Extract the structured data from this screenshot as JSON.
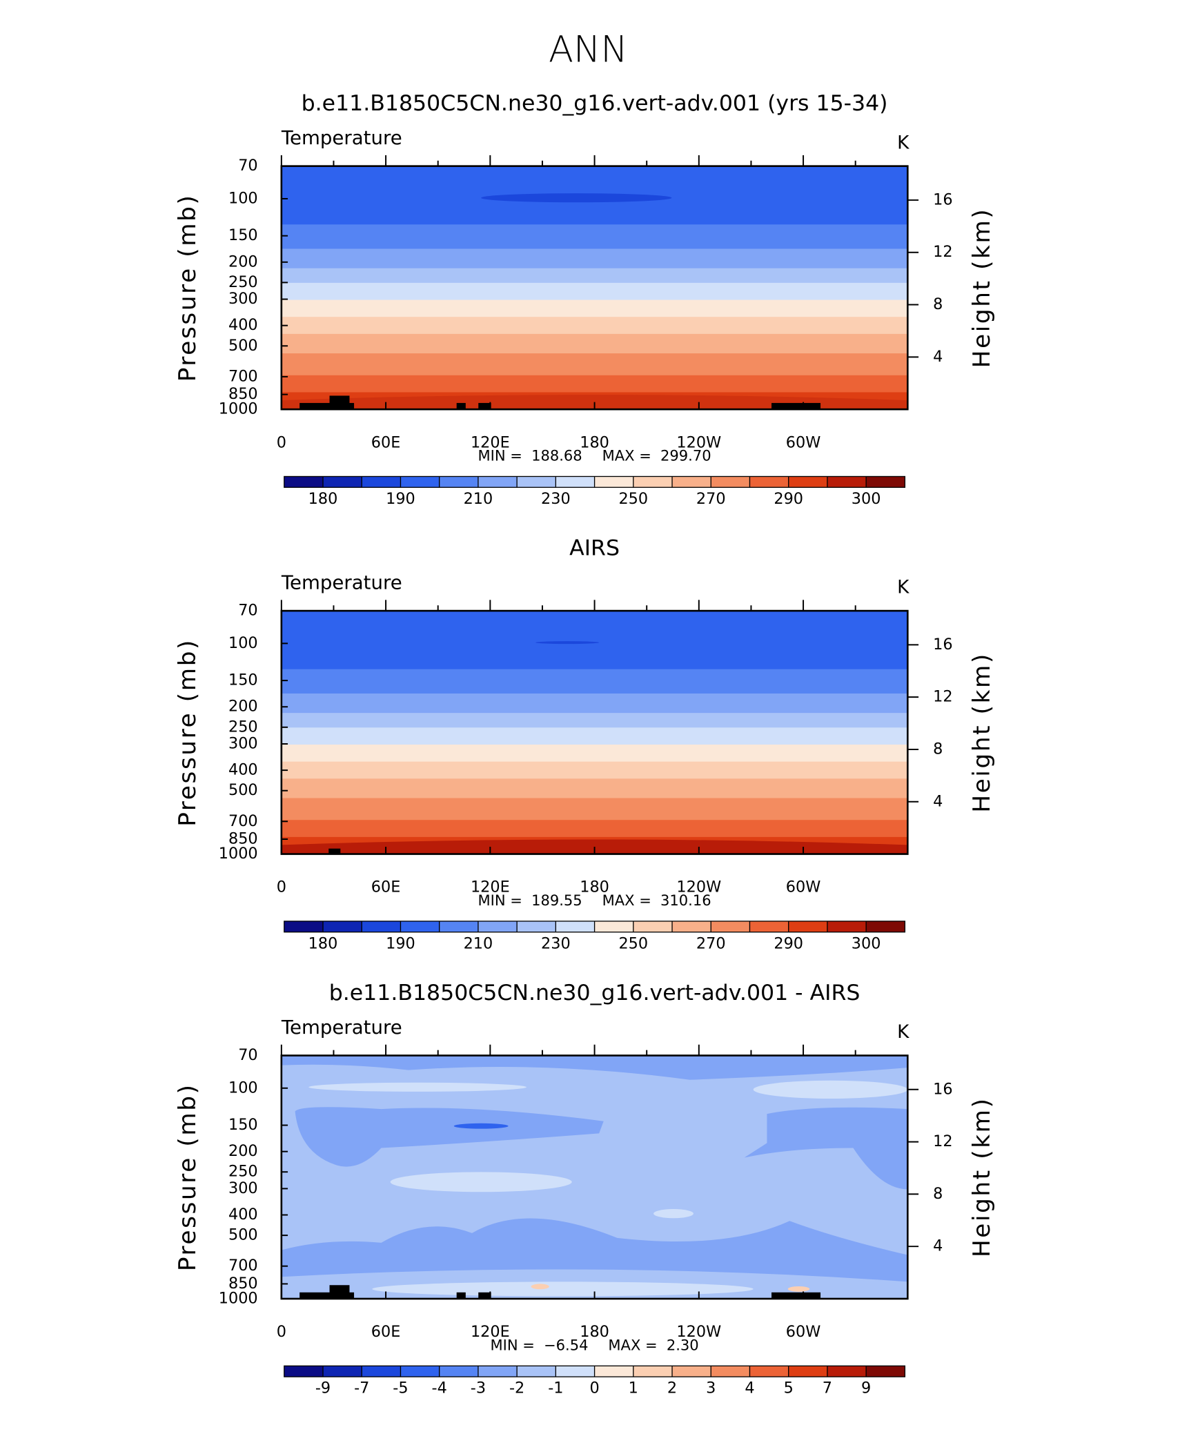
{
  "title": "ANN",
  "chart_data": [
    {
      "type": "contour",
      "title": "b.e11.B1850C5CN.ne30_g16.vert-adv.001 (yrs 15-34)",
      "variable": "Temperature",
      "units": "K",
      "y_label": "Pressure (mb)",
      "y2_label": "Height (km)",
      "log_y": true,
      "ylim": [
        70,
        1000
      ],
      "yticks": [
        70,
        100,
        150,
        200,
        250,
        300,
        400,
        500,
        700,
        850,
        1000
      ],
      "y2lim": [
        0,
        18.6
      ],
      "y2ticks": [
        4,
        8,
        12,
        16
      ],
      "xlim": [
        0,
        360
      ],
      "xticks": [
        0,
        {
          "value": 60,
          "label": "60E"
        },
        {
          "value": 120,
          "label": "120E"
        },
        180,
        {
          "value": 240,
          "label": "120W"
        },
        {
          "value": 300,
          "label": "60W"
        }
      ],
      "stats": {
        "names": [
          "MIN =",
          "MAX ="
        ],
        "values": [
          188.68,
          299.7
        ],
        "value_labels": [
          "188.68",
          "299.70"
        ]
      },
      "colorbar": {
        "levels": [
          180,
          null,
          190,
          null,
          210,
          null,
          230,
          null,
          250,
          null,
          270,
          null,
          290,
          null,
          300
        ],
        "colors": [
          "#0b0c85",
          "#0e25b3",
          "#1b47dc",
          "#2f63ee",
          "#5584f3",
          "#81a5f6",
          "#a9c3f7",
          "#d0e0fa",
          "#fbe8d8",
          "#fbcfb2",
          "#f8b08a",
          "#f38c60",
          "#ec6336",
          "#de3e13",
          "#b81c08",
          "#7e0a05"
        ]
      }
    },
    {
      "type": "contour",
      "title": "AIRS",
      "variable": "Temperature",
      "units": "K",
      "y_label": "Pressure (mb)",
      "y2_label": "Height (km)",
      "log_y": true,
      "ylim": [
        70,
        1000
      ],
      "yticks": [
        70,
        100,
        150,
        200,
        250,
        300,
        400,
        500,
        700,
        850,
        1000
      ],
      "y2lim": [
        0,
        18.6
      ],
      "y2ticks": [
        4,
        8,
        12,
        16
      ],
      "xlim": [
        0,
        360
      ],
      "xticks": [
        0,
        {
          "value": 60,
          "label": "60E"
        },
        {
          "value": 120,
          "label": "120E"
        },
        180,
        {
          "value": 240,
          "label": "120W"
        },
        {
          "value": 300,
          "label": "60W"
        }
      ],
      "stats": {
        "names": [
          "MIN =",
          "MAX ="
        ],
        "values": [
          189.55,
          310.16
        ],
        "value_labels": [
          "189.55",
          "310.16"
        ]
      },
      "colorbar": {
        "levels": [
          180,
          null,
          190,
          null,
          210,
          null,
          230,
          null,
          250,
          null,
          270,
          null,
          290,
          null,
          300
        ],
        "colors": [
          "#0b0c85",
          "#0e25b3",
          "#1b47dc",
          "#2f63ee",
          "#5584f3",
          "#81a5f6",
          "#a9c3f7",
          "#d0e0fa",
          "#fbe8d8",
          "#fbcfb2",
          "#f8b08a",
          "#f38c60",
          "#ec6336",
          "#de3e13",
          "#b81c08",
          "#7e0a05"
        ]
      }
    },
    {
      "type": "contour",
      "title": "b.e11.B1850C5CN.ne30_g16.vert-adv.001 - AIRS",
      "variable": "Temperature",
      "units": "K",
      "y_label": "Pressure (mb)",
      "y2_label": "Height (km)",
      "log_y": true,
      "ylim": [
        70,
        1000
      ],
      "yticks": [
        70,
        100,
        150,
        200,
        250,
        300,
        400,
        500,
        700,
        850,
        1000
      ],
      "y2lim": [
        0,
        18.6
      ],
      "y2ticks": [
        4,
        8,
        12,
        16
      ],
      "xlim": [
        0,
        360
      ],
      "xticks": [
        0,
        {
          "value": 60,
          "label": "60E"
        },
        {
          "value": 120,
          "label": "120E"
        },
        180,
        {
          "value": 240,
          "label": "120W"
        },
        {
          "value": 300,
          "label": "60W"
        }
      ],
      "stats": {
        "names": [
          "MIN =",
          "MAX ="
        ],
        "values": [
          -6.54,
          2.3
        ],
        "value_labels": [
          "−6.54",
          "2.30"
        ]
      },
      "colorbar": {
        "levels": [
          -9,
          -7,
          -5,
          -4,
          -3,
          -2,
          -1,
          0,
          1,
          2,
          3,
          4,
          5,
          7,
          9
        ],
        "colors": [
          "#0b0c85",
          "#0e25b3",
          "#1b47dc",
          "#2f63ee",
          "#5584f3",
          "#81a5f6",
          "#a9c3f7",
          "#d0e0fa",
          "#fbe8d8",
          "#fbcfb2",
          "#f8b08a",
          "#f38c60",
          "#ec6336",
          "#de3e13",
          "#b81c08",
          "#7e0a05"
        ]
      }
    }
  ]
}
